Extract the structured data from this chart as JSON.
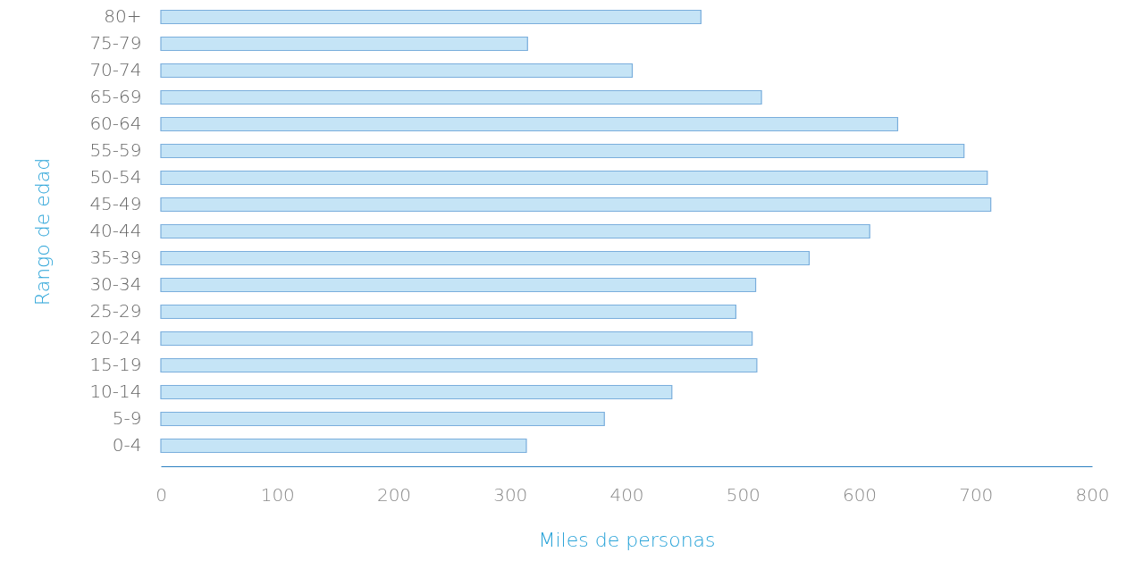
{
  "chart_data": {
    "type": "bar",
    "orientation": "horizontal",
    "xlabel": "Miles de personas",
    "ylabel": "Rango de edad",
    "categories": [
      "80+",
      "75-79",
      "70-74",
      "65-69",
      "60-64",
      "55-59",
      "50-54",
      "45-49",
      "40-44",
      "35-39",
      "30-34",
      "25-29",
      "20-24",
      "15-19",
      "10-14",
      "5-9",
      "0-4"
    ],
    "values": [
      464,
      315,
      405,
      516,
      633,
      690,
      710,
      713,
      609,
      557,
      511,
      494,
      508,
      512,
      439,
      381,
      314
    ],
    "color": "#c5e4f6",
    "xlim": [
      0,
      800
    ],
    "xticks": [
      0,
      100,
      200,
      300,
      400,
      500,
      600,
      700,
      800
    ],
    "grid": false
  }
}
